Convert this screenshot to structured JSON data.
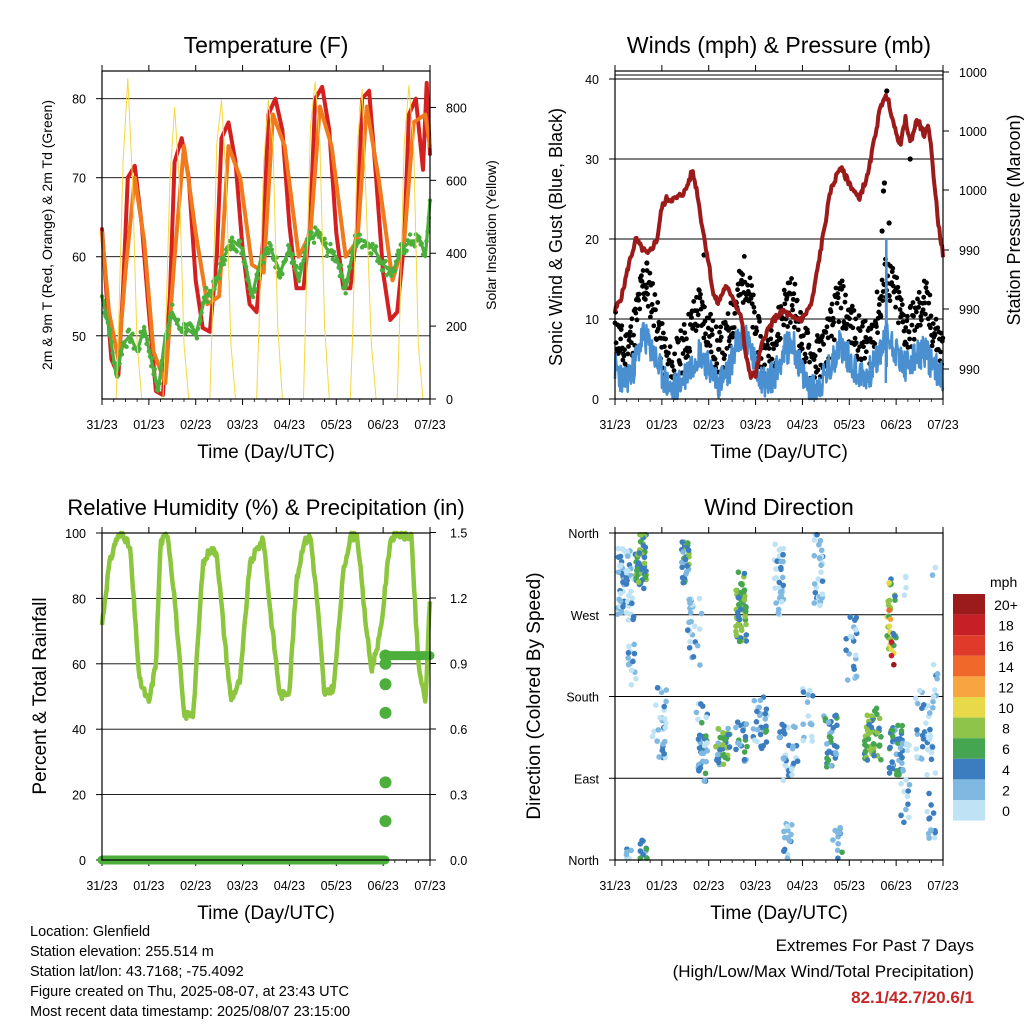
{
  "chart_data": [
    {
      "type": "line",
      "title": "Temperature (F)",
      "xlabel": "Time (Day/UTC)",
      "ylabel": "2m & 9m T (Red, Orange) & 2m Td (Green)",
      "y2label": "Solar Insolation (Yellow)",
      "x_ticks": [
        "31/23",
        "01/23",
        "02/23",
        "03/23",
        "04/23",
        "05/23",
        "06/23",
        "07/23"
      ],
      "xlim": [
        0,
        7
      ],
      "ylim": [
        42,
        83.5
      ],
      "yticks": [
        50,
        60,
        70,
        80
      ],
      "y2lim": [
        0,
        900
      ],
      "y2ticks": [
        0,
        200,
        400,
        600,
        800
      ],
      "grid": "horizontal",
      "series": [
        {
          "name": "2m T",
          "color": "#d42020",
          "x": [
            0,
            0.1,
            0.2,
            0.35,
            0.45,
            0.55,
            0.7,
            0.85,
            1.0,
            1.15,
            1.3,
            1.45,
            1.55,
            1.7,
            1.85,
            2.0,
            2.15,
            2.3,
            2.45,
            2.55,
            2.7,
            2.85,
            3.0,
            3.15,
            3.3,
            3.45,
            3.55,
            3.7,
            3.85,
            4.0,
            4.15,
            4.3,
            4.45,
            4.55,
            4.7,
            4.85,
            5.0,
            5.15,
            5.3,
            5.45,
            5.55,
            5.7,
            5.85,
            6.0,
            6.15,
            6.3,
            6.45,
            6.55,
            6.7,
            6.85,
            6.93,
            7.0
          ],
          "values": [
            63.5,
            55,
            47,
            45,
            56,
            70,
            71.5,
            64,
            53,
            43,
            42.5,
            55,
            72,
            75,
            70,
            57,
            51,
            50.5,
            60,
            75,
            77,
            72,
            61,
            54,
            53,
            63,
            78,
            80,
            76,
            64,
            56,
            56,
            65,
            80,
            81.5,
            76,
            63,
            56,
            56,
            64,
            80,
            81,
            70,
            58,
            52,
            53,
            62,
            78,
            80,
            71,
            82,
            73
          ]
        },
        {
          "name": "9m T",
          "color": "#f07a1c",
          "x": [
            0,
            0.15,
            0.35,
            0.5,
            0.7,
            0.9,
            1.1,
            1.35,
            1.55,
            1.75,
            2.0,
            2.25,
            2.5,
            2.7,
            2.95,
            3.2,
            3.45,
            3.65,
            3.9,
            4.2,
            4.45,
            4.65,
            4.9,
            5.2,
            5.45,
            5.65,
            5.9,
            6.2,
            6.45,
            6.65,
            6.9,
            7.0
          ],
          "values": [
            63,
            53,
            47,
            58,
            70,
            62,
            48,
            44,
            60,
            74,
            63,
            54,
            55,
            74,
            70,
            59,
            58,
            78,
            74,
            60,
            63,
            79,
            74,
            60,
            62,
            79,
            70,
            57,
            62,
            77,
            78,
            74
          ]
        },
        {
          "name": "2m Td",
          "color": "#4caf3c",
          "x": [
            0,
            0.15,
            0.3,
            0.45,
            0.6,
            0.75,
            0.9,
            1.05,
            1.2,
            1.35,
            1.5,
            1.65,
            1.8,
            2.0,
            2.2,
            2.4,
            2.6,
            2.8,
            3.0,
            3.2,
            3.4,
            3.6,
            3.8,
            4.0,
            4.2,
            4.4,
            4.6,
            4.8,
            5.0,
            5.2,
            5.4,
            5.6,
            5.8,
            6.0,
            6.2,
            6.4,
            6.6,
            6.8,
            6.9,
            7.0
          ],
          "values": [
            55,
            51,
            45,
            49,
            50,
            48,
            51,
            47,
            43,
            50,
            53,
            51,
            51,
            50,
            55,
            56,
            60,
            62,
            61,
            55,
            60,
            61,
            58,
            61,
            57,
            62,
            63,
            61,
            60,
            56,
            62,
            62,
            61,
            59,
            58,
            61,
            62,
            62,
            60,
            67
          ]
        },
        {
          "name": "Solar Insolation",
          "color": "#f5d742",
          "axis": "y2",
          "x": [
            0,
            0.1,
            0.2,
            0.3,
            0.35,
            0.45,
            0.55,
            0.65,
            0.75,
            0.85,
            1.0,
            1.1,
            1.2,
            1.3,
            1.35,
            1.45,
            1.55,
            1.65,
            1.75,
            1.85,
            2.0,
            2.1,
            2.2,
            2.3,
            2.35,
            2.45,
            2.55,
            2.65,
            2.75,
            2.85,
            3.0,
            3.1,
            3.2,
            3.3,
            3.35,
            3.45,
            3.55,
            3.65,
            3.75,
            3.85,
            4.0,
            4.1,
            4.2,
            4.3,
            4.35,
            4.45,
            4.55,
            4.65,
            4.75,
            4.85,
            5.0,
            5.1,
            5.2,
            5.3,
            5.35,
            5.45,
            5.55,
            5.65,
            5.75,
            5.85,
            6.0,
            6.1,
            6.2,
            6.3,
            6.35,
            6.45,
            6.55,
            6.65,
            6.75,
            6.85,
            7.0
          ],
          "values": [
            0,
            0,
            0,
            0,
            180,
            650,
            880,
            600,
            150,
            0,
            0,
            0,
            0,
            0,
            150,
            600,
            800,
            600,
            150,
            0,
            0,
            0,
            0,
            0,
            200,
            700,
            820,
            600,
            150,
            0,
            0,
            0,
            0,
            0,
            200,
            650,
            820,
            700,
            200,
            0,
            0,
            0,
            0,
            0,
            250,
            750,
            870,
            700,
            200,
            0,
            0,
            0,
            0,
            0,
            180,
            700,
            850,
            500,
            150,
            0,
            0,
            0,
            0,
            0,
            200,
            700,
            860,
            700,
            150,
            0,
            0
          ]
        }
      ]
    },
    {
      "type": "line",
      "title": "Winds (mph) & Pressure (mb)",
      "xlabel": "Time (Day/UTC)",
      "ylabel": "Sonic Wind & Gust (Blue, Black)",
      "y2label": "Station Pressure (Maroon)",
      "x_ticks": [
        "31/23",
        "01/23",
        "02/23",
        "03/23",
        "04/23",
        "05/23",
        "06/23",
        "07/23"
      ],
      "xlim": [
        0,
        7
      ],
      "ylim": [
        0,
        41
      ],
      "yticks": [
        0,
        10,
        20,
        30,
        40
      ],
      "y2_tick_labels": [
        "990",
        "990",
        "990",
        "1000",
        "1000",
        "1000"
      ],
      "grid": "horizontal",
      "series": [
        {
          "name": "Gust",
          "color": "#000000",
          "x": [
            0,
            0.2,
            0.4,
            0.6,
            0.8,
            1.0,
            1.2,
            1.4,
            1.6,
            1.8,
            2.0,
            2.2,
            2.4,
            2.6,
            2.8,
            3.0,
            3.2,
            3.4,
            3.6,
            3.8,
            4.0,
            4.2,
            4.4,
            4.6,
            4.8,
            5.0,
            5.2,
            5.4,
            5.6,
            5.8,
            6.0,
            6.2,
            6.4,
            6.6,
            6.8,
            7.0
          ],
          "values": [
            8,
            5,
            8,
            14,
            12,
            6,
            3,
            5,
            8,
            11,
            8,
            5,
            7,
            12,
            15,
            8,
            4,
            6,
            11,
            12,
            7,
            4,
            5,
            8,
            12,
            9,
            7,
            6,
            10,
            15,
            12,
            8,
            9,
            12,
            8,
            5
          ]
        },
        {
          "name": "Sonic Wind",
          "color": "#4a90d0",
          "x": [
            0,
            0.2,
            0.4,
            0.6,
            0.8,
            1.0,
            1.2,
            1.4,
            1.6,
            1.8,
            2.0,
            2.2,
            2.4,
            2.6,
            2.8,
            3.0,
            3.2,
            3.4,
            3.6,
            3.8,
            4.0,
            4.2,
            4.4,
            4.6,
            4.8,
            5.0,
            5.2,
            5.4,
            5.6,
            5.8,
            6.0,
            6.2,
            6.4,
            6.6,
            6.8,
            7.0
          ],
          "values": [
            4,
            2,
            4,
            8,
            6,
            3,
            1,
            2,
            4,
            6,
            4,
            2,
            3,
            7,
            8,
            4,
            2,
            3,
            6,
            7,
            3,
            1,
            2,
            4,
            7,
            5,
            3,
            3,
            5,
            8,
            6,
            4,
            5,
            6,
            4,
            3
          ]
        },
        {
          "name": "Station Pressure",
          "color": "#9b1b1b",
          "x": [
            0,
            0.15,
            0.3,
            0.45,
            0.55,
            0.7,
            0.9,
            1.0,
            1.1,
            1.3,
            1.5,
            1.65,
            1.75,
            1.85,
            2.0,
            2.1,
            2.2,
            2.35,
            2.5,
            2.7,
            2.8,
            2.9,
            3.0,
            3.1,
            3.2,
            3.4,
            3.6,
            3.8,
            4.0,
            4.2,
            4.4,
            4.6,
            4.8,
            5.0,
            5.2,
            5.4,
            5.55,
            5.65,
            5.75,
            5.85,
            6.0,
            6.1,
            6.2,
            6.3,
            6.45,
            6.6,
            6.7,
            6.8,
            6.9,
            7.0
          ],
          "values": [
            11,
            13,
            17,
            20,
            19,
            18,
            20,
            24,
            25,
            25,
            26,
            28.5,
            26,
            22,
            17,
            13,
            12,
            14,
            13,
            10,
            5,
            3,
            3,
            6,
            8,
            10,
            11,
            10,
            10,
            12,
            19,
            26,
            29,
            27,
            25,
            28,
            33,
            36,
            38,
            37,
            33,
            32,
            35,
            32,
            35,
            33,
            34,
            28,
            22,
            18
          ]
        }
      ]
    },
    {
      "type": "line",
      "title": "Relative Humidity (%) & Precipitation (in)",
      "xlabel": "Time (Day/UTC)",
      "ylabel": "Percent & Total Rainfall",
      "x_ticks": [
        "31/23",
        "01/23",
        "02/23",
        "03/23",
        "04/23",
        "05/23",
        "06/23",
        "07/23"
      ],
      "xlim": [
        0,
        7
      ],
      "ylim": [
        0,
        100
      ],
      "yticks": [
        0,
        20,
        40,
        60,
        80,
        100
      ],
      "y2lim": [
        0,
        1.6
      ],
      "y2_tick_labels": [
        "0.0",
        "0.3",
        "0.6",
        "0.9",
        "1.2",
        "1.5"
      ],
      "grid": "horizontal",
      "series": [
        {
          "name": "Relative Humidity",
          "color": "#8cc63f",
          "x": [
            0,
            0.15,
            0.3,
            0.45,
            0.6,
            0.8,
            1.0,
            1.15,
            1.25,
            1.4,
            1.55,
            1.75,
            1.95,
            2.15,
            2.3,
            2.45,
            2.6,
            2.75,
            2.95,
            3.15,
            3.3,
            3.45,
            3.6,
            3.8,
            4.0,
            4.15,
            4.3,
            4.45,
            4.6,
            4.75,
            4.95,
            5.15,
            5.3,
            5.45,
            5.6,
            5.75,
            5.95,
            6.15,
            6.3,
            6.45,
            6.6,
            6.75,
            6.9,
            7.0
          ],
          "values": [
            72,
            90,
            98,
            100,
            95,
            55,
            48,
            60,
            97,
            100,
            80,
            44,
            45,
            90,
            95,
            94,
            70,
            49,
            55,
            90,
            95,
            98,
            75,
            50,
            52,
            85,
            97,
            99,
            78,
            50,
            53,
            88,
            99,
            99,
            76,
            58,
            70,
            98,
            100,
            99,
            99,
            60,
            48,
            80
          ]
        },
        {
          "name": "Total Rainfall",
          "color": "#4caf3c",
          "axis": "y2",
          "x": [
            0,
            1,
            2,
            3,
            4,
            5,
            6.0,
            6.05,
            6.05,
            6.05,
            6.05,
            6.05,
            6.05,
            6.05,
            6.1,
            6.5,
            7.0
          ],
          "values": [
            0,
            0,
            0,
            0,
            0,
            0,
            0,
            0.19,
            0.38,
            0.72,
            0.86,
            0.96,
            1.0,
            1.0,
            1.0,
            1.0,
            1.0
          ]
        }
      ]
    },
    {
      "type": "scatter",
      "title": "Wind Direction",
      "xlabel": "Time (Day/UTC)",
      "ylabel": "Direction (Colored By Speed)",
      "x_ticks": [
        "31/23",
        "01/23",
        "02/23",
        "03/23",
        "04/23",
        "05/23",
        "06/23",
        "07/23"
      ],
      "xlim": [
        0,
        7
      ],
      "y_tick_labels": [
        "North",
        "East",
        "South",
        "West",
        "North"
      ],
      "ylim": [
        0,
        360
      ],
      "grid": "horizontal",
      "colorbar": {
        "title": "mph",
        "labels": [
          "20+",
          "18",
          "16",
          "14",
          "12",
          "10",
          "8",
          "6",
          "4",
          "2",
          "0"
        ],
        "colors": [
          "#9b1b1b",
          "#c62026",
          "#e03a2b",
          "#f0682a",
          "#f7a541",
          "#e7d94a",
          "#8ec449",
          "#45a550",
          "#3b7dbf",
          "#7fb8e0",
          "#bfe3f5"
        ]
      }
    }
  ],
  "info": {
    "location": "Location: Glenfield",
    "elevation": "Station elevation: 255.514 m",
    "latlon": "Station lat/lon: 43.7168; -75.4092",
    "created": "Figure created on Thu, 2025-08-07, at 23:43 UTC",
    "recent": "Most recent data timestamp: 2025/08/07 23:15:00"
  },
  "extremes": {
    "title": "Extremes For Past 7 Days",
    "subtitle": "(High/Low/Max Wind/Total Precipitation)",
    "value": "82.1/42.7/20.6/1"
  }
}
